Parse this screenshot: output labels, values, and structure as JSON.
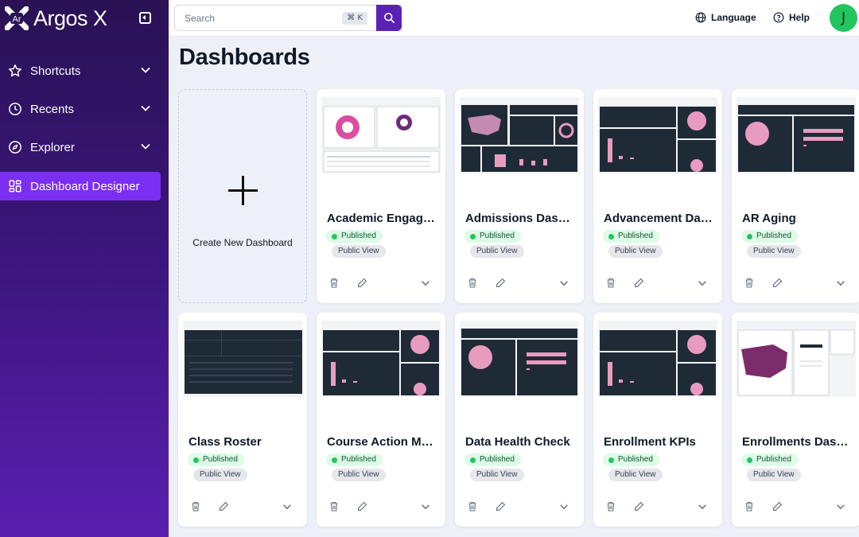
{
  "app": {
    "name": "Argos X",
    "logo_mark": "Ar"
  },
  "sidebar": {
    "items": [
      {
        "label": "Shortcuts",
        "icon": "star-icon",
        "expandable": true
      },
      {
        "label": "Recents",
        "icon": "clock-icon",
        "expandable": true
      },
      {
        "label": "Explorer",
        "icon": "compass-icon",
        "expandable": true
      },
      {
        "label": "Dashboard Designer",
        "icon": "grid-icon",
        "expandable": false,
        "active": true
      }
    ]
  },
  "header": {
    "search_placeholder": "Search",
    "search_shortcut": "⌘ K",
    "language_label": "Language",
    "help_label": "Help",
    "avatar_initial": "J"
  },
  "colors": {
    "accent": "#7b2ff2",
    "search_button": "#5b21b6",
    "published_dot": "#22c55e",
    "thumb_dark": "#1f2a37",
    "thumb_pink": "#e89bc0"
  },
  "page": {
    "title": "Dashboards",
    "create_label": "Create New Dashboard"
  },
  "cards": [
    {
      "title": "Academic Engagement Dashboard",
      "status": "Published",
      "visibility": "Public View",
      "thumb": "light"
    },
    {
      "title": "Admissions Dashboard",
      "status": "Published",
      "visibility": "Public View",
      "thumb": "dark-map"
    },
    {
      "title": "Advancement Dashboard",
      "status": "Published",
      "visibility": "Public View",
      "thumb": "dark"
    },
    {
      "title": "AR Aging",
      "status": "Published",
      "visibility": "Public View",
      "thumb": "dark-pie"
    },
    {
      "title": "Class Roster",
      "status": "Published",
      "visibility": "Public View",
      "thumb": "dark-table"
    },
    {
      "title": "Course Action Monitor",
      "status": "Published",
      "visibility": "Public View",
      "thumb": "dark"
    },
    {
      "title": "Data Health Check",
      "status": "Published",
      "visibility": "Public View",
      "thumb": "dark-pie"
    },
    {
      "title": "Enrollment KPIs",
      "status": "Published",
      "visibility": "Public View",
      "thumb": "dark"
    },
    {
      "title": "Enrollments Dashboard",
      "status": "Published",
      "visibility": "Public View",
      "thumb": "light-map"
    }
  ]
}
